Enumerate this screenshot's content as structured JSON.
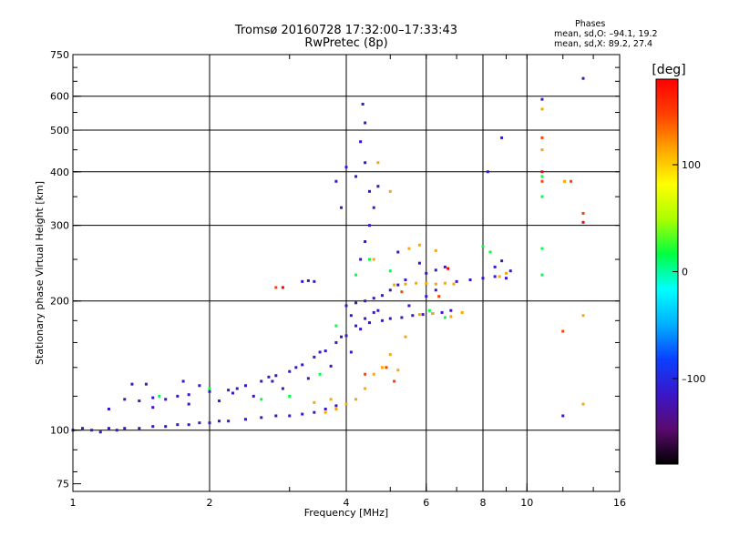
{
  "title": "Tromsø 20160728 17:32:00–17:33:43",
  "subtitle": "RwPretec (8p)",
  "phases": {
    "heading": "Phases",
    "line_o": "mean, sd,O: –94.1, 19.2",
    "line_x": "mean, sd,X:  89.2, 27.4"
  },
  "colorbar": {
    "label": "[deg]",
    "ticks": [
      {
        "value": 100,
        "label": "100"
      },
      {
        "value": 0,
        "label": "0"
      },
      {
        "value": -100,
        "label": "–100"
      }
    ],
    "range": [
      -180,
      180
    ],
    "colors": [
      "#000000",
      "#5a0a6e",
      "#3a16c8",
      "#0a40ff",
      "#00b0ff",
      "#00ffff",
      "#00ff40",
      "#aaff00",
      "#ffff00",
      "#ffa500",
      "#ff4000",
      "#ff0000"
    ]
  },
  "chart_data": {
    "type": "scatter",
    "x_scale": "log",
    "y_scale": "log",
    "xlabel": "Frequency [MHz]",
    "ylabel": "Stationary phase Virtual Height [km]",
    "xlim": [
      1,
      16
    ],
    "ylim": [
      72,
      750
    ],
    "x_ticks": [
      {
        "v": 1,
        "l": "1"
      },
      {
        "v": 2,
        "l": "2"
      },
      {
        "v": 4,
        "l": "4"
      },
      {
        "v": 6,
        "l": "6"
      },
      {
        "v": 8,
        "l": "8"
      },
      {
        "v": 10,
        "l": "10"
      },
      {
        "v": 16,
        "l": "16"
      }
    ],
    "y_ticks": [
      {
        "v": 75,
        "l": "75"
      },
      {
        "v": 100,
        "l": "100"
      },
      {
        "v": 200,
        "l": "200"
      },
      {
        "v": 300,
        "l": "300"
      },
      {
        "v": 400,
        "l": "400"
      },
      {
        "v": 500,
        "l": "500"
      },
      {
        "v": 600,
        "l": "600"
      },
      {
        "v": 750,
        "l": "750"
      }
    ],
    "x_grid": [
      2,
      4,
      6,
      8,
      10
    ],
    "y_grid": [
      100,
      200,
      300,
      400,
      500,
      600
    ],
    "grid": true,
    "color_variable": "phase [deg]",
    "series": [
      {
        "phase": -100,
        "points": [
          [
            1.0,
            100
          ],
          [
            1.05,
            101
          ],
          [
            1.1,
            100
          ],
          [
            1.15,
            99
          ],
          [
            1.2,
            101
          ],
          [
            1.25,
            100
          ],
          [
            1.3,
            101
          ],
          [
            1.4,
            101
          ],
          [
            1.5,
            102
          ],
          [
            1.6,
            102
          ],
          [
            1.7,
            103
          ],
          [
            1.8,
            103
          ],
          [
            1.9,
            104
          ],
          [
            2.0,
            104
          ],
          [
            2.1,
            105
          ],
          [
            2.2,
            105
          ],
          [
            2.4,
            106
          ],
          [
            2.6,
            107
          ],
          [
            2.8,
            108
          ],
          [
            3.0,
            108
          ],
          [
            3.2,
            109
          ],
          [
            3.4,
            110
          ],
          [
            3.6,
            112
          ],
          [
            3.8,
            114
          ],
          [
            1.3,
            118
          ],
          [
            1.4,
            117
          ],
          [
            1.5,
            119
          ],
          [
            1.6,
            118
          ],
          [
            1.7,
            120
          ],
          [
            1.8,
            121
          ],
          [
            2.0,
            123
          ],
          [
            2.2,
            124
          ],
          [
            2.4,
            127
          ],
          [
            2.6,
            130
          ],
          [
            2.8,
            134
          ],
          [
            3.0,
            137
          ],
          [
            3.2,
            142
          ],
          [
            3.4,
            148
          ],
          [
            3.6,
            153
          ],
          [
            3.8,
            160
          ],
          [
            4.0,
            166
          ],
          [
            4.2,
            175
          ],
          [
            4.4,
            182
          ],
          [
            4.6,
            188
          ],
          [
            1.2,
            112
          ],
          [
            1.5,
            113
          ],
          [
            1.8,
            115
          ],
          [
            2.1,
            117
          ],
          [
            2.5,
            120
          ],
          [
            2.9,
            125
          ],
          [
            3.3,
            132
          ],
          [
            3.7,
            141
          ],
          [
            4.1,
            152
          ],
          [
            4.3,
            172
          ],
          [
            4.5,
            178
          ],
          [
            4.8,
            180
          ],
          [
            5.0,
            182
          ],
          [
            5.3,
            183
          ],
          [
            5.6,
            185
          ],
          [
            5.9,
            186
          ],
          [
            6.2,
            187
          ],
          [
            6.5,
            188
          ],
          [
            6.8,
            190
          ],
          [
            4.0,
            195
          ],
          [
            4.2,
            198
          ],
          [
            4.4,
            200
          ],
          [
            4.6,
            203
          ],
          [
            4.8,
            206
          ],
          [
            5.0,
            212
          ],
          [
            5.2,
            218
          ],
          [
            5.4,
            224
          ],
          [
            4.3,
            250
          ],
          [
            4.4,
            275
          ],
          [
            4.5,
            300
          ],
          [
            4.6,
            330
          ],
          [
            4.5,
            360
          ],
          [
            4.4,
            420
          ],
          [
            4.3,
            470
          ],
          [
            4.4,
            520
          ],
          [
            4.35,
            575
          ],
          [
            4.0,
            410
          ],
          [
            3.9,
            330
          ],
          [
            3.8,
            380
          ],
          [
            7.0,
            222
          ],
          [
            7.5,
            224
          ],
          [
            8.0,
            226
          ],
          [
            8.5,
            228
          ],
          [
            9.0,
            226
          ],
          [
            6.0,
            232
          ],
          [
            6.3,
            236
          ],
          [
            6.6,
            240
          ],
          [
            3.2,
            222
          ],
          [
            3.3,
            223
          ],
          [
            3.4,
            222
          ],
          [
            1.45,
            128
          ],
          [
            1.75,
            130
          ],
          [
            2.25,
            122
          ],
          [
            2.75,
            130
          ]
        ]
      },
      {
        "phase": -120,
        "points": [
          [
            1.35,
            128
          ],
          [
            1.9,
            127
          ],
          [
            2.3,
            125
          ],
          [
            2.7,
            133
          ],
          [
            3.1,
            140
          ],
          [
            3.5,
            152
          ],
          [
            3.9,
            165
          ],
          [
            4.1,
            185
          ],
          [
            4.7,
            190
          ],
          [
            5.5,
            195
          ],
          [
            6.0,
            205
          ],
          [
            6.3,
            212
          ],
          [
            8.5,
            240
          ],
          [
            8.8,
            248
          ],
          [
            9.2,
            235
          ],
          [
            10.8,
            590
          ],
          [
            13.3,
            660
          ],
          [
            12.0,
            108
          ],
          [
            8.2,
            400
          ],
          [
            8.8,
            480
          ],
          [
            4.2,
            390
          ],
          [
            4.7,
            370
          ],
          [
            5.2,
            260
          ],
          [
            5.8,
            245
          ]
        ]
      },
      {
        "phase": 0,
        "points": [
          [
            1.55,
            120
          ],
          [
            2.0,
            125
          ],
          [
            2.6,
            118
          ],
          [
            3.0,
            120
          ],
          [
            3.5,
            135
          ],
          [
            3.8,
            175
          ],
          [
            4.2,
            230
          ],
          [
            4.5,
            250
          ],
          [
            5.0,
            235
          ],
          [
            6.1,
            190
          ],
          [
            6.6,
            183
          ],
          [
            10.8,
            390
          ],
          [
            10.8,
            350
          ],
          [
            10.8,
            265
          ],
          [
            10.8,
            230
          ],
          [
            8.0,
            268
          ],
          [
            8.3,
            260
          ]
        ]
      },
      {
        "phase": 100,
        "points": [
          [
            3.6,
            110
          ],
          [
            3.8,
            112
          ],
          [
            4.0,
            115
          ],
          [
            4.2,
            118
          ],
          [
            4.4,
            125
          ],
          [
            4.6,
            135
          ],
          [
            4.8,
            140
          ],
          [
            5.0,
            150
          ],
          [
            5.2,
            138
          ],
          [
            5.4,
            165
          ],
          [
            5.1,
            218
          ],
          [
            5.4,
            219
          ],
          [
            5.7,
            220
          ],
          [
            6.0,
            220
          ],
          [
            6.3,
            219
          ],
          [
            6.6,
            220
          ],
          [
            6.9,
            219
          ],
          [
            5.8,
            186
          ],
          [
            6.2,
            187
          ],
          [
            6.8,
            184
          ],
          [
            7.2,
            188
          ],
          [
            5.5,
            265
          ],
          [
            5.8,
            270
          ],
          [
            6.3,
            262
          ],
          [
            4.7,
            420
          ],
          [
            5.0,
            360
          ],
          [
            4.6,
            250
          ],
          [
            10.8,
            450
          ],
          [
            10.8,
            560
          ],
          [
            13.3,
            185
          ],
          [
            13.3,
            115
          ],
          [
            12.1,
            380
          ],
          [
            3.4,
            116
          ],
          [
            3.7,
            118
          ],
          [
            8.7,
            228
          ],
          [
            9.0,
            232
          ]
        ]
      },
      {
        "phase": 140,
        "points": [
          [
            4.4,
            135
          ],
          [
            4.9,
            140
          ],
          [
            5.1,
            130
          ],
          [
            10.8,
            480
          ],
          [
            10.8,
            380
          ],
          [
            12.0,
            170
          ],
          [
            12.5,
            380
          ],
          [
            13.3,
            320
          ],
          [
            2.8,
            215
          ],
          [
            5.3,
            210
          ],
          [
            6.4,
            205
          ]
        ]
      },
      {
        "phase": 170,
        "points": [
          [
            10.8,
            400
          ],
          [
            13.3,
            305
          ],
          [
            2.9,
            215
          ],
          [
            6.7,
            238
          ]
        ]
      }
    ]
  }
}
